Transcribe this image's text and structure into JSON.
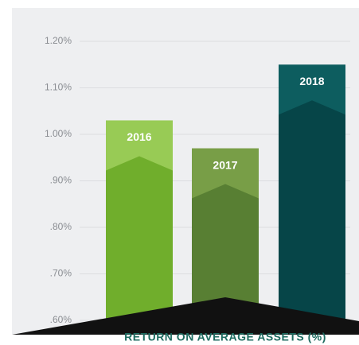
{
  "chart_data": {
    "type": "bar",
    "title": "RETURN ON AVERAGE ASSETS (%)",
    "categories": [
      "2016",
      "2017",
      "2018"
    ],
    "values": [
      1.03,
      0.97,
      1.15
    ],
    "colors": [
      "#98cb55",
      "#789e47",
      "#0d5d5f"
    ],
    "chevron_colors": [
      "#70ae2c",
      "#587f33",
      "#064548"
    ],
    "ylim": [
      0.6,
      1.2
    ],
    "yticks": [
      {
        "value": 0.6,
        "label": ".60%"
      },
      {
        "value": 0.7,
        "label": ".70%"
      },
      {
        "value": 0.8,
        "label": ".80%"
      },
      {
        "value": 0.9,
        "label": ".90%"
      },
      {
        "value": 1.0,
        "label": "1.00%"
      },
      {
        "value": 1.1,
        "label": "1.10%"
      },
      {
        "value": 1.2,
        "label": "1.20%"
      }
    ],
    "grid": true
  }
}
